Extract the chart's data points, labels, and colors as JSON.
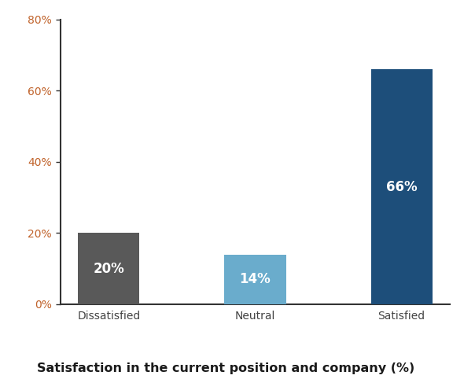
{
  "categories": [
    "Dissatisfied",
    "Neutral",
    "Satisfied"
  ],
  "values": [
    20,
    14,
    66
  ],
  "bar_colors": [
    "#595959",
    "#6aaccc",
    "#1d4e7a"
  ],
  "bar_labels": [
    "20%",
    "14%",
    "66%"
  ],
  "label_color": "#ffffff",
  "title": "Satisfaction in the current position and company (%)",
  "title_fontsize": 11.5,
  "title_fontweight": "bold",
  "title_color": "#1a1a1a",
  "ylim": [
    0,
    80
  ],
  "yticks": [
    0,
    20,
    40,
    60,
    80
  ],
  "ytick_labels": [
    "0%",
    "20%",
    "40%",
    "60%",
    "80%"
  ],
  "background_color": "#ffffff",
  "bar_label_fontsize": 12,
  "tick_label_fontsize": 10,
  "ytick_color": "#c0622a",
  "xtick_color": "#444444",
  "spine_color": "#333333",
  "bar_width": 0.42
}
